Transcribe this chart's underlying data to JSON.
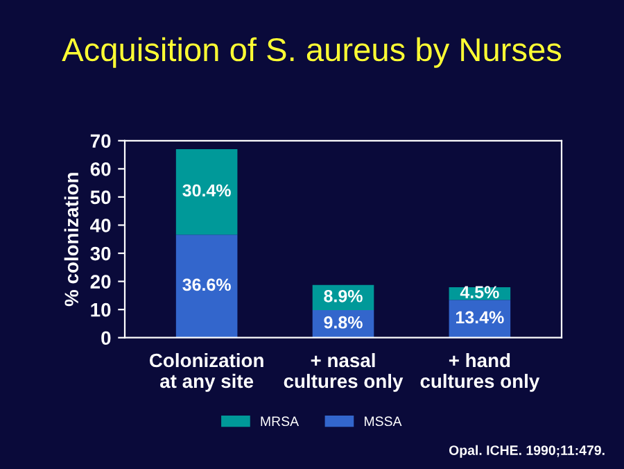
{
  "chart_data": {
    "type": "bar",
    "stacked": true,
    "title": "Acquisition of S. aureus by Nurses",
    "ylabel": "% colonization",
    "categories": [
      "Colonization\nat any site",
      "+ nasal\ncultures only",
      "+ hand\ncultures only"
    ],
    "series": [
      {
        "name": "MSSA",
        "color": "#3366cc",
        "values": [
          36.6,
          9.8,
          13.4
        ],
        "value_labels": [
          "36.6%",
          "9.8%",
          "13.4%"
        ]
      },
      {
        "name": "MRSA",
        "color": "#009999",
        "values": [
          30.4,
          8.9,
          4.5
        ],
        "value_labels": [
          "30.4%",
          "8.9%",
          "4.5%"
        ]
      }
    ],
    "ylim": [
      0,
      70
    ],
    "yticks": [
      0,
      10,
      20,
      30,
      40,
      50,
      60,
      70
    ],
    "legend": "bottom",
    "grid": false,
    "annotations": [
      "Opal. ICHE. 1990;11:479."
    ]
  }
}
